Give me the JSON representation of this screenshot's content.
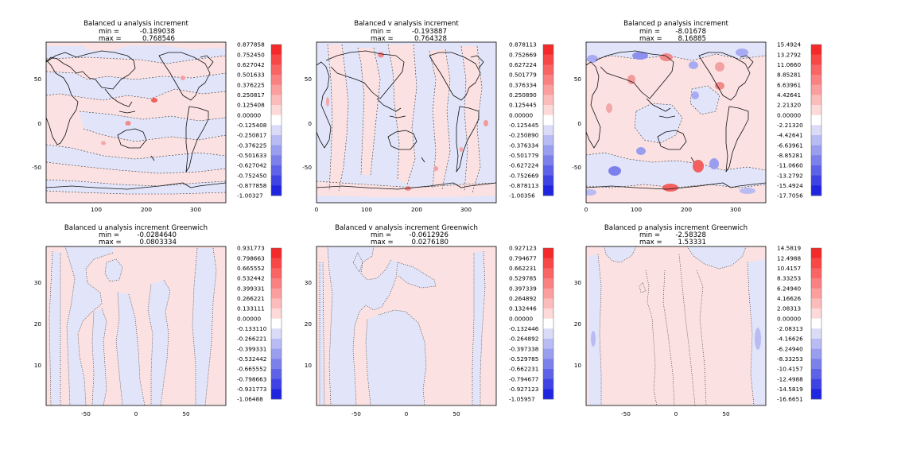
{
  "chart_data": [
    {
      "type": "heatmap",
      "field": "Balanced u analysis increment",
      "title": "Balanced u analysis increment",
      "min_label": "min =",
      "min_value": "-0.189038",
      "max_label": "max =",
      "max_value": "0.768546",
      "projection": "map",
      "xlim": [
        0,
        360
      ],
      "ylim": [
        -90,
        90
      ],
      "xticks": [
        "100",
        "200",
        "300"
      ],
      "xtick_values": [
        100,
        200,
        300
      ],
      "yticks": [
        "50",
        "0",
        "-50"
      ],
      "ytick_values": [
        50,
        0,
        -50
      ],
      "colorbar_labels": [
        "0.877858",
        "0.752450",
        "0.627042",
        "0.501633",
        "0.376225",
        "0.250817",
        "0.125408",
        "0.00000",
        "-0.125408",
        "-0.250817",
        "-0.376225",
        "-0.501633",
        "-0.627042",
        "-0.752450",
        "-0.877858",
        "-1.00327"
      ],
      "coastlines": true,
      "contour_style": "dashed"
    },
    {
      "type": "heatmap",
      "field": "Balanced v analysis increment",
      "title": "Balanced v analysis increment",
      "min_label": "min =",
      "min_value": "-0.193887",
      "max_label": "max =",
      "max_value": "0.764328",
      "projection": "map",
      "xlim": [
        0,
        360
      ],
      "ylim": [
        -90,
        90
      ],
      "xticks": [
        "0",
        "100",
        "200",
        "300"
      ],
      "xtick_values": [
        0,
        100,
        200,
        300
      ],
      "yticks": [
        "50",
        "0",
        "-50"
      ],
      "ytick_values": [
        50,
        0,
        -50
      ],
      "colorbar_labels": [
        "0.878113",
        "0.752669",
        "0.627224",
        "0.501779",
        "0.376334",
        "0.250890",
        "0.125445",
        "0.00000",
        "-0.125445",
        "-0.250890",
        "-0.376334",
        "-0.501779",
        "-0.627224",
        "-0.752669",
        "-0.878113",
        "-1.00356"
      ],
      "coastlines": true,
      "contour_style": "dashed"
    },
    {
      "type": "heatmap",
      "field": "Balanced p analysis increment",
      "title": "Balanced p analysis increment",
      "min_label": "min =",
      "min_value": "-8.01678",
      "max_label": "max =",
      "max_value": "8.16885",
      "projection": "map",
      "xlim": [
        0,
        360
      ],
      "ylim": [
        -90,
        90
      ],
      "xticks": [
        "0",
        "100",
        "200",
        "300"
      ],
      "xtick_values": [
        0,
        100,
        200,
        300
      ],
      "yticks": [
        "50",
        "0",
        "-50"
      ],
      "ytick_values": [
        50,
        0,
        -50
      ],
      "colorbar_labels": [
        "15.4924",
        "13.2792",
        "11.0660",
        "8.85281",
        "6.63961",
        "4.42641",
        "2.21320",
        "0.00000",
        "-2.21320",
        "-4.42641",
        "-6.63961",
        "-8.85281",
        "-11.0660",
        "-13.2792",
        "-15.4924",
        "-17.7056"
      ],
      "coastlines": true,
      "contour_style": "dashed"
    },
    {
      "type": "heatmap",
      "field": "Balanced u analysis increment Greenwich",
      "title": "Balanced u analysis increment Greenwich",
      "min_label": "min =",
      "min_value": "-0.0284640",
      "max_label": "max =",
      "max_value": "0.0803334",
      "projection": "cross-section",
      "xlim": [
        -90,
        90
      ],
      "ylim": [
        1,
        38
      ],
      "xticks": [
        "-50",
        "0",
        "50"
      ],
      "xtick_values": [
        -50,
        0,
        50
      ],
      "yticks": [
        "30",
        "20",
        "10"
      ],
      "ytick_values": [
        30,
        20,
        10
      ],
      "colorbar_labels": [
        "0.931773",
        "0.798663",
        "0.665552",
        "0.532442",
        "0.399331",
        "0.266221",
        "0.133111",
        "0.00000",
        "-0.133110",
        "-0.266221",
        "-0.399331",
        "-0.532442",
        "-0.665552",
        "-0.798663",
        "-0.931773",
        "-1.06488"
      ],
      "coastlines": false,
      "contour_style": "dotted"
    },
    {
      "type": "heatmap",
      "field": "Balanced v analysis increment Greenwich",
      "title": "Balanced v analysis increment Greenwich",
      "min_label": "min =",
      "min_value": "-0.0612926",
      "max_label": "max =",
      "max_value": "0.0276180",
      "projection": "cross-section",
      "xlim": [
        -90,
        90
      ],
      "ylim": [
        1,
        38
      ],
      "xticks": [
        "-50",
        "0",
        "50"
      ],
      "xtick_values": [
        -50,
        0,
        50
      ],
      "yticks": [
        "30",
        "20",
        "10"
      ],
      "ytick_values": [
        30,
        20,
        10
      ],
      "colorbar_labels": [
        "0.927123",
        "0.794677",
        "0.662231",
        "0.529785",
        "0.397339",
        "0.264892",
        "0.132446",
        "0.00000",
        "-0.132446",
        "-0.264892",
        "-0.397338",
        "-0.529785",
        "-0.662231",
        "-0.794677",
        "-0.927123",
        "-1.05957"
      ],
      "coastlines": false,
      "contour_style": "dotted"
    },
    {
      "type": "heatmap",
      "field": "Balanced p analysis increment Greenwich",
      "title": "Balanced p analysis increment Greenwich",
      "min_label": "min =",
      "min_value": "-2.58328",
      "max_label": "max =",
      "max_value": "1.53331",
      "projection": "cross-section",
      "xlim": [
        -90,
        90
      ],
      "ylim": [
        1,
        38
      ],
      "xticks": [
        "-50",
        "0",
        "50"
      ],
      "xtick_values": [
        -50,
        0,
        50
      ],
      "yticks": [
        "30",
        "20",
        "10"
      ],
      "ytick_values": [
        30,
        20,
        10
      ],
      "colorbar_labels": [
        "14.5819",
        "12.4988",
        "10.4157",
        "8.33253",
        "6.24940",
        "4.16626",
        "2.08313",
        "0.00000",
        "-2.08313",
        "-4.16626",
        "-6.24940",
        "-8.33253",
        "-10.4157",
        "-12.4988",
        "-14.5819",
        "-16.6651"
      ],
      "coastlines": false,
      "contour_style": "dotted"
    }
  ],
  "colors": {
    "positive_light": "#fbe1e1",
    "positive_strong": "#ff1a1a",
    "negative_light": "#e2e4f9",
    "negative_strong": "#0000ff",
    "zero": "#ffffff"
  },
  "colorbar_ramp": [
    "#f42a2a",
    "#f84747",
    "#f96464",
    "#fa8181",
    "#fb9e9e",
    "#fcbcbc",
    "#fdd9d9",
    "#ffffff",
    "#dadbf7",
    "#b9bcf3",
    "#9a9eef",
    "#7c80eb",
    "#5d62e7",
    "#3f43e4",
    "#2026e0",
    "#0000ff"
  ]
}
